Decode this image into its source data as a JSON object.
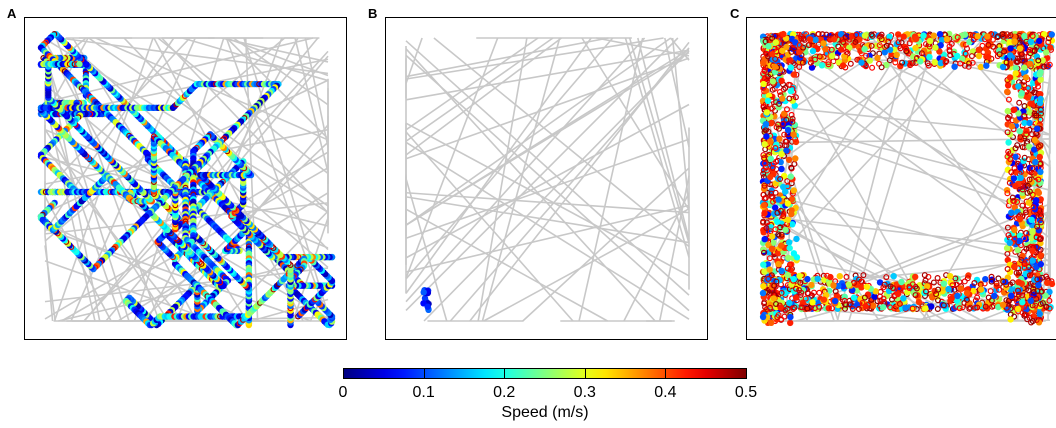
{
  "panels": [
    {
      "label": "A",
      "description": "dense trajectory, mixed speeds"
    },
    {
      "label": "B",
      "description": "sparse trajectory, mostly grey path"
    },
    {
      "label": "C",
      "description": "trajectory concentrated along the walls, high speeds"
    }
  ],
  "colorbar": {
    "title": "Speed (m/s)",
    "ticks": [
      "0",
      "0.1",
      "0.2",
      "0.3",
      "0.4",
      "0.5"
    ],
    "range": [
      0,
      0.5
    ],
    "colormap": "jet"
  },
  "colors": {
    "path": "#c8c8c8",
    "frame": "#000000"
  },
  "chart_data": {
    "type": "scatter",
    "colorbar_label": "Speed (m/s)",
    "color_range": [
      0,
      0.5
    ],
    "panels": [
      "A",
      "B",
      "C"
    ]
  }
}
